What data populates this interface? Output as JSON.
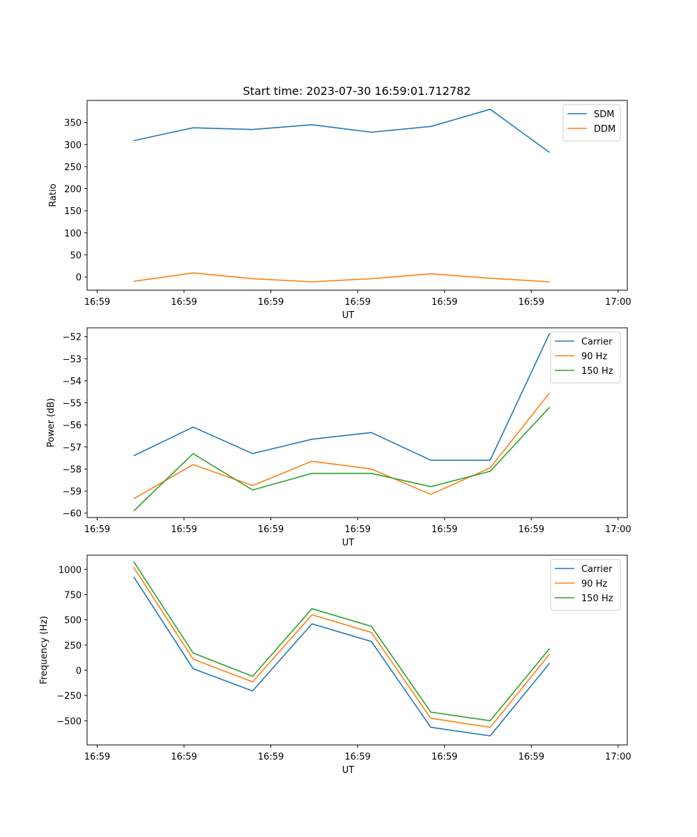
{
  "title": "Start time: 2023-07-30 16:59:01.712782",
  "colors": {
    "c0": "#1f77b4",
    "c1": "#ff7f0e",
    "c2": "#2ca02c"
  },
  "chart_data": [
    {
      "type": "line",
      "xlabel": "UT",
      "ylabel": "Ratio",
      "x_tick_labels": [
        "16:59",
        "16:59",
        "16:59",
        "16:59",
        "16:59",
        "16:59",
        "17:00"
      ],
      "y_ticks": [
        0,
        50,
        100,
        150,
        200,
        250,
        300,
        350
      ],
      "ylim": [
        -30,
        400
      ],
      "x": [
        0.5,
        1.15,
        1.8,
        2.45,
        3.1,
        3.75,
        4.4,
        5.05
      ],
      "series": [
        {
          "name": "SDM",
          "values": [
            309,
            338,
            334,
            345,
            328,
            341,
            380,
            282
          ]
        },
        {
          "name": "DDM",
          "values": [
            -10,
            9,
            -4,
            -11,
            -4,
            7,
            -3,
            -11
          ]
        }
      ]
    },
    {
      "type": "line",
      "xlabel": "UT",
      "ylabel": "Power (dB)",
      "x_tick_labels": [
        "16:59",
        "16:59",
        "16:59",
        "16:59",
        "16:59",
        "16:59",
        "17:00"
      ],
      "y_ticks": [
        -60,
        -59,
        -58,
        -57,
        -56,
        -55,
        -54,
        -53,
        -52
      ],
      "ylim": [
        -60.2,
        -51.6
      ],
      "x": [
        0.5,
        1.15,
        1.8,
        2.45,
        3.1,
        3.75,
        4.4,
        5.05
      ],
      "series": [
        {
          "name": "Carrier",
          "values": [
            -57.4,
            -56.1,
            -57.3,
            -56.65,
            -56.35,
            -57.6,
            -57.6,
            -51.85
          ]
        },
        {
          "name": "90 Hz",
          "values": [
            -59.35,
            -57.8,
            -58.75,
            -57.65,
            -58.0,
            -59.15,
            -57.95,
            -54.55
          ]
        },
        {
          "name": "150 Hz",
          "values": [
            -59.9,
            -57.3,
            -58.95,
            -58.2,
            -58.2,
            -58.8,
            -58.1,
            -55.2
          ]
        }
      ]
    },
    {
      "type": "line",
      "xlabel": "UT",
      "ylabel": "Frequency (Hz)",
      "x_tick_labels": [
        "16:59",
        "16:59",
        "16:59",
        "16:59",
        "16:59",
        "16:59",
        "17:00"
      ],
      "y_ticks": [
        -500,
        -250,
        0,
        250,
        500,
        750,
        1000
      ],
      "ylim": [
        -740,
        1140
      ],
      "x": [
        0.5,
        1.15,
        1.8,
        2.45,
        3.1,
        3.75,
        4.4,
        5.05
      ],
      "series": [
        {
          "name": "Carrier",
          "values": [
            925,
            15,
            -205,
            460,
            285,
            -565,
            -650,
            70
          ]
        },
        {
          "name": "90 Hz",
          "values": [
            1020,
            110,
            -115,
            550,
            375,
            -475,
            -565,
            160
          ]
        },
        {
          "name": "150 Hz",
          "values": [
            1075,
            170,
            -60,
            610,
            435,
            -415,
            -500,
            215
          ]
        }
      ]
    }
  ]
}
